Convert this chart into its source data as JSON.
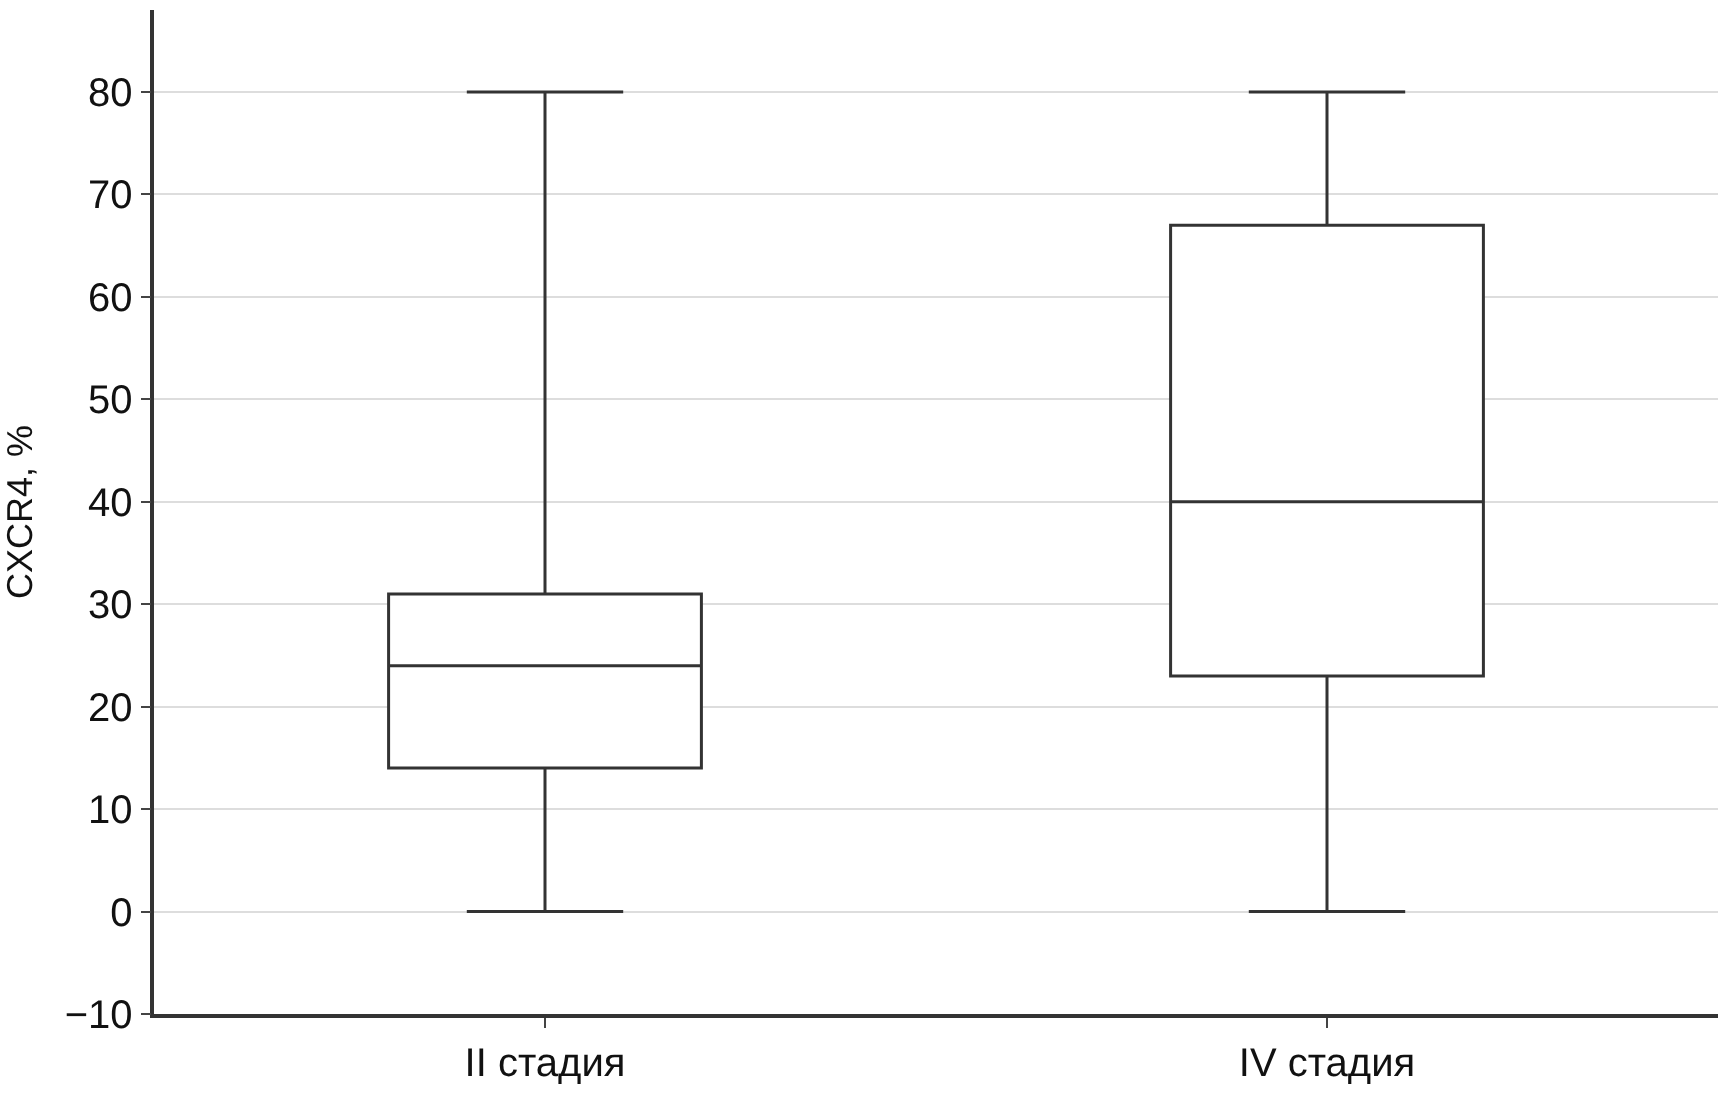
{
  "chart_data": {
    "type": "box",
    "ylabel": "CXCR4, %",
    "categories": [
      "II стадия",
      "IV стадия"
    ],
    "boxes": [
      {
        "low": 0,
        "q1": 14,
        "median": 24,
        "q3": 31,
        "high": 80
      },
      {
        "low": 0,
        "q1": 23,
        "median": 40,
        "q3": 67,
        "high": 80
      }
    ],
    "color": "#333333",
    "ylim": [
      -10,
      88
    ],
    "yticks": [
      -10,
      0,
      10,
      20,
      30,
      40,
      50,
      60,
      70,
      80
    ],
    "grid": "y"
  }
}
